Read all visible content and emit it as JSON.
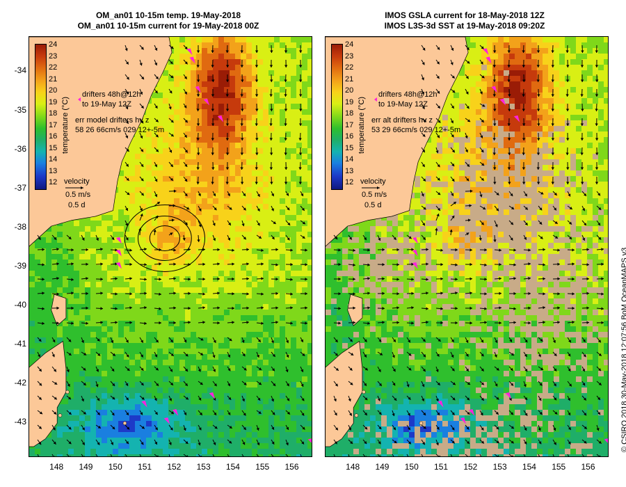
{
  "left_panel": {
    "title_line1": "OM_an01 10-15m temp. 19-May-2018",
    "title_line2": "OM_an01 10-15m current for 19-May-2018 00Z",
    "legend_drifters_1": "drifters 48h@12h",
    "legend_drifters_2": "to 19-May 12Z",
    "legend_err_1": "err model drifters hv z",
    "legend_err_2": "58 26 66cm/s 029 12+-5m",
    "velocity_label": "velocity",
    "velocity_scale_1": "0.5 m/s",
    "velocity_scale_2": "0.5 d",
    "colorbar_title": "temperature (°C)"
  },
  "right_panel": {
    "title_line1": "IMOS GSLA current for 18-May-2018 12Z",
    "title_line2": "IMOS L3S-3d SST at 19-May-2018 09:20Z",
    "legend_drifters_1": "drifters 48h@12h",
    "legend_drifters_2": "to 19-May 12Z",
    "legend_err_1": "err alt drifters hv z",
    "legend_err_2": "53 29 66cm/s 029 12+-5m",
    "velocity_label": "velocity",
    "velocity_scale_1": "0.5 m/s",
    "velocity_scale_2": "0.5 d",
    "colorbar_title": "temperature (°C)"
  },
  "colorbar_ticks": [
    "24",
    "23",
    "22",
    "21",
    "20",
    "19",
    "18",
    "17",
    "16",
    "15",
    "14",
    "13",
    "12"
  ],
  "lat_ticks": [
    "-34",
    "-35",
    "-36",
    "-37",
    "-38",
    "-39",
    "-40",
    "-41",
    "-42",
    "-43"
  ],
  "lon_ticks": [
    "148",
    "149",
    "150",
    "151",
    "152",
    "153",
    "154",
    "155",
    "156"
  ],
  "credit": "© CSIRO 2018  30-May-2018 12:07:56 BoM OceanMAPS v3",
  "colors": {
    "land": "#fcc898",
    "drifter": "#ff22dd",
    "cloud": "#c8ab88",
    "arrow": "#000000"
  }
}
